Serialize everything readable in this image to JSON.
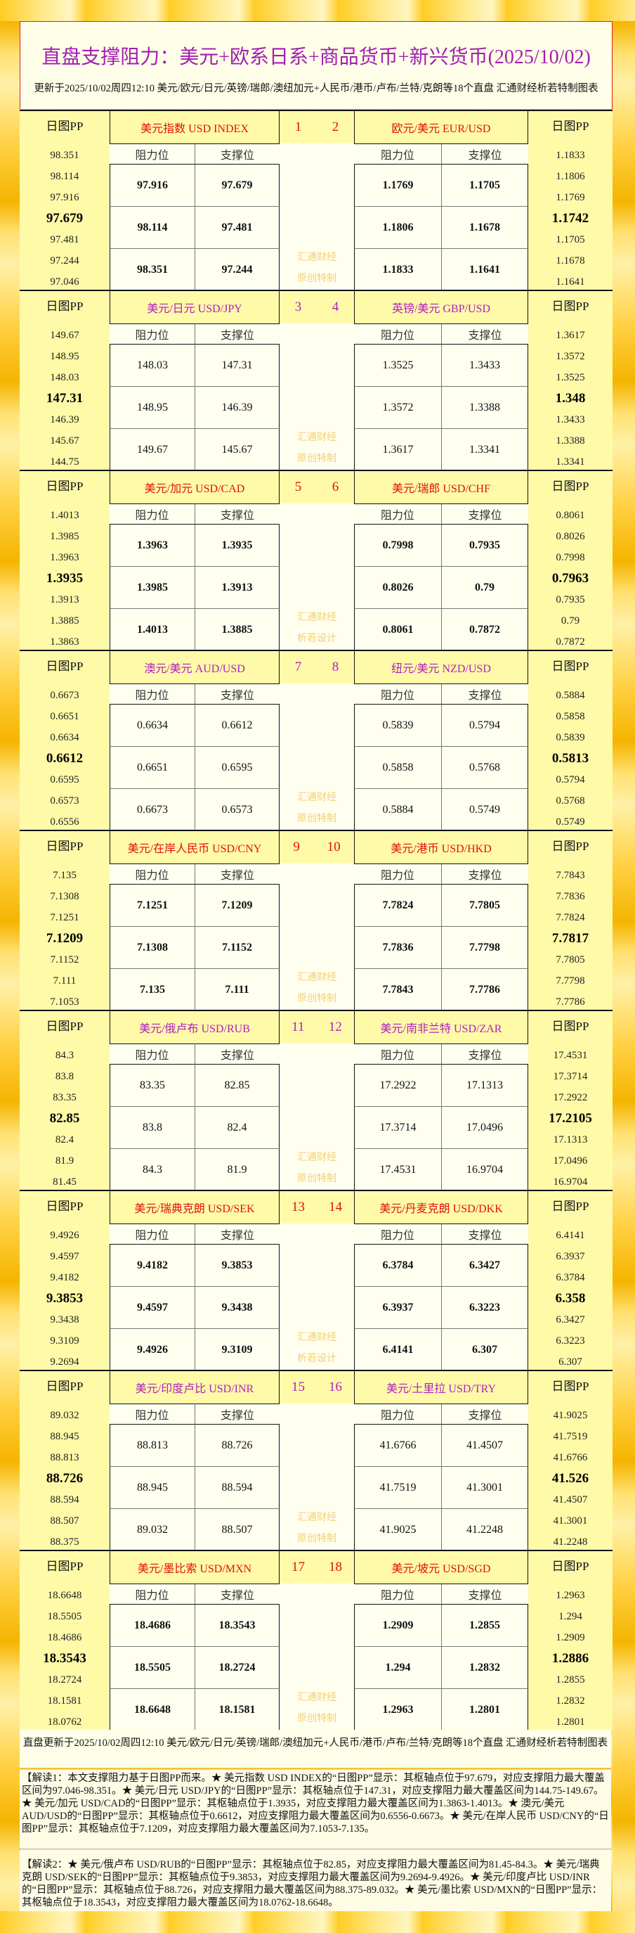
{
  "header": {
    "title": "直盘支撑阻力：美元+欧系日系+商品货币+新兴货币(2025/10/02)",
    "subtitle": "更新于2025/10/02周四12:10 美元/欧元/日元/英镑/瑞郎/澳纽加元+人民币/港币/卢布/兰特/克朗等18个直盘 汇通财经析若特制图表"
  },
  "labels": {
    "pp": "日图PP",
    "resistance": "阻力位",
    "support": "支撑位",
    "wm1": "汇通财经"
  },
  "colors": {
    "red": "#e01010",
    "purple": "#b020c0"
  },
  "blocks": [
    {
      "nums": [
        "1",
        "2"
      ],
      "color": "red",
      "bold": true,
      "wm2": "原创特制",
      "left": {
        "name": "美元指数 USD INDEX",
        "pp": [
          "98.351",
          "98.114",
          "97.916",
          "97.679",
          "97.481",
          "97.244",
          "97.046"
        ],
        "rows": [
          [
            "97.916",
            "97.679"
          ],
          [
            "98.114",
            "97.481"
          ],
          [
            "98.351",
            "97.244"
          ]
        ]
      },
      "right": {
        "name": "欧元/美元 EUR/USD",
        "pp": [
          "1.1833",
          "1.1806",
          "1.1769",
          "1.1742",
          "1.1705",
          "1.1678",
          "1.1641"
        ],
        "rows": [
          [
            "1.1769",
            "1.1705"
          ],
          [
            "1.1806",
            "1.1678"
          ],
          [
            "1.1833",
            "1.1641"
          ]
        ]
      }
    },
    {
      "nums": [
        "3",
        "4"
      ],
      "color": "purple",
      "bold": false,
      "wm2": "原创特制",
      "left": {
        "name": "美元/日元 USD/JPY",
        "pp": [
          "149.67",
          "148.95",
          "148.03",
          "147.31",
          "146.39",
          "145.67",
          "144.75"
        ],
        "rows": [
          [
            "148.03",
            "147.31"
          ],
          [
            "148.95",
            "146.39"
          ],
          [
            "149.67",
            "145.67"
          ]
        ]
      },
      "right": {
        "name": "英镑/美元 GBP/USD",
        "pp": [
          "1.3617",
          "1.3572",
          "1.3525",
          "1.348",
          "1.3433",
          "1.3388",
          "1.3341"
        ],
        "rows": [
          [
            "1.3525",
            "1.3433"
          ],
          [
            "1.3572",
            "1.3388"
          ],
          [
            "1.3617",
            "1.3341"
          ]
        ]
      }
    },
    {
      "nums": [
        "5",
        "6"
      ],
      "color": "red",
      "bold": true,
      "wm2": "析若设计",
      "left": {
        "name": "美元/加元 USD/CAD",
        "pp": [
          "1.4013",
          "1.3985",
          "1.3963",
          "1.3935",
          "1.3913",
          "1.3885",
          "1.3863"
        ],
        "rows": [
          [
            "1.3963",
            "1.3935"
          ],
          [
            "1.3985",
            "1.3913"
          ],
          [
            "1.4013",
            "1.3885"
          ]
        ]
      },
      "right": {
        "name": "美元/瑞郎 USD/CHF",
        "pp": [
          "0.8061",
          "0.8026",
          "0.7998",
          "0.7963",
          "0.7935",
          "0.79",
          "0.7872"
        ],
        "rows": [
          [
            "0.7998",
            "0.7935"
          ],
          [
            "0.8026",
            "0.79"
          ],
          [
            "0.8061",
            "0.7872"
          ]
        ]
      }
    },
    {
      "nums": [
        "7",
        "8"
      ],
      "color": "purple",
      "bold": false,
      "wm2": "原创特制",
      "left": {
        "name": "澳元/美元 AUD/USD",
        "pp": [
          "0.6673",
          "0.6651",
          "0.6634",
          "0.6612",
          "0.6595",
          "0.6573",
          "0.6556"
        ],
        "rows": [
          [
            "0.6634",
            "0.6612"
          ],
          [
            "0.6651",
            "0.6595"
          ],
          [
            "0.6673",
            "0.6573"
          ]
        ]
      },
      "right": {
        "name": "纽元/美元 NZD/USD",
        "pp": [
          "0.5884",
          "0.5858",
          "0.5839",
          "0.5813",
          "0.5794",
          "0.5768",
          "0.5749"
        ],
        "rows": [
          [
            "0.5839",
            "0.5794"
          ],
          [
            "0.5858",
            "0.5768"
          ],
          [
            "0.5884",
            "0.5749"
          ]
        ]
      }
    },
    {
      "nums": [
        "9",
        "10"
      ],
      "color": "red",
      "bold": true,
      "wm2": "原创特制",
      "left": {
        "name": "美元/在岸人民币 USD/CNY",
        "pp": [
          "7.135",
          "7.1308",
          "7.1251",
          "7.1209",
          "7.1152",
          "7.111",
          "7.1053"
        ],
        "rows": [
          [
            "7.1251",
            "7.1209"
          ],
          [
            "7.1308",
            "7.1152"
          ],
          [
            "7.135",
            "7.111"
          ]
        ]
      },
      "right": {
        "name": "美元/港币 USD/HKD",
        "pp": [
          "7.7843",
          "7.7836",
          "7.7824",
          "7.7817",
          "7.7805",
          "7.7798",
          "7.7786"
        ],
        "rows": [
          [
            "7.7824",
            "7.7805"
          ],
          [
            "7.7836",
            "7.7798"
          ],
          [
            "7.7843",
            "7.7786"
          ]
        ]
      }
    },
    {
      "nums": [
        "11",
        "12"
      ],
      "color": "purple",
      "bold": false,
      "wm2": "原创特制",
      "left": {
        "name": "美元/俄卢布 USD/RUB",
        "pp": [
          "84.3",
          "83.8",
          "83.35",
          "82.85",
          "82.4",
          "81.9",
          "81.45"
        ],
        "rows": [
          [
            "83.35",
            "82.85"
          ],
          [
            "83.8",
            "82.4"
          ],
          [
            "84.3",
            "81.9"
          ]
        ]
      },
      "right": {
        "name": "美元/南非兰特 USD/ZAR",
        "pp": [
          "17.4531",
          "17.3714",
          "17.2922",
          "17.2105",
          "17.1313",
          "17.0496",
          "16.9704"
        ],
        "rows": [
          [
            "17.2922",
            "17.1313"
          ],
          [
            "17.3714",
            "17.0496"
          ],
          [
            "17.4531",
            "16.9704"
          ]
        ]
      }
    },
    {
      "nums": [
        "13",
        "14"
      ],
      "color": "red",
      "bold": true,
      "wm2": "析若设计",
      "left": {
        "name": "美元/瑞典克朗 USD/SEK",
        "pp": [
          "9.4926",
          "9.4597",
          "9.4182",
          "9.3853",
          "9.3438",
          "9.3109",
          "9.2694"
        ],
        "rows": [
          [
            "9.4182",
            "9.3853"
          ],
          [
            "9.4597",
            "9.3438"
          ],
          [
            "9.4926",
            "9.3109"
          ]
        ]
      },
      "right": {
        "name": "美元/丹麦克朗 USD/DKK",
        "pp": [
          "6.4141",
          "6.3937",
          "6.3784",
          "6.358",
          "6.3427",
          "6.3223",
          "6.307"
        ],
        "rows": [
          [
            "6.3784",
            "6.3427"
          ],
          [
            "6.3937",
            "6.3223"
          ],
          [
            "6.4141",
            "6.307"
          ]
        ]
      }
    },
    {
      "nums": [
        "15",
        "16"
      ],
      "color": "purple",
      "bold": false,
      "wm2": "原创特制",
      "left": {
        "name": "美元/印度卢比 USD/INR",
        "pp": [
          "89.032",
          "88.945",
          "88.813",
          "88.726",
          "88.594",
          "88.507",
          "88.375"
        ],
        "rows": [
          [
            "88.813",
            "88.726"
          ],
          [
            "88.945",
            "88.594"
          ],
          [
            "89.032",
            "88.507"
          ]
        ]
      },
      "right": {
        "name": "美元/土里拉 USD/TRY",
        "pp": [
          "41.9025",
          "41.7519",
          "41.6766",
          "41.526",
          "41.4507",
          "41.3001",
          "41.2248"
        ],
        "rows": [
          [
            "41.6766",
            "41.4507"
          ],
          [
            "41.7519",
            "41.3001"
          ],
          [
            "41.9025",
            "41.2248"
          ]
        ]
      }
    },
    {
      "nums": [
        "17",
        "18"
      ],
      "color": "red",
      "bold": true,
      "wm2": "原创特制",
      "left": {
        "name": "美元/墨比索 USD/MXN",
        "pp": [
          "18.6648",
          "18.5505",
          "18.4686",
          "18.3543",
          "18.2724",
          "18.1581",
          "18.0762"
        ],
        "rows": [
          [
            "18.4686",
            "18.3543"
          ],
          [
            "18.5505",
            "18.2724"
          ],
          [
            "18.6648",
            "18.1581"
          ]
        ]
      },
      "right": {
        "name": "美元/坡元 USD/SGD",
        "pp": [
          "1.2963",
          "1.294",
          "1.2909",
          "1.2886",
          "1.2855",
          "1.2832",
          "1.2801"
        ],
        "rows": [
          [
            "1.2909",
            "1.2855"
          ],
          [
            "1.294",
            "1.2832"
          ],
          [
            "1.2963",
            "1.2801"
          ]
        ]
      }
    }
  ],
  "footer": {
    "update": "直盘更新于2025/10/02周四12:10 美元/欧元/日元/英镑/瑞郎/澳纽加元+人民币/港币/卢布/兰特/克朗等18个直盘 汇通财经析若特制图表",
    "note1": "【解读1：本文支撑阻力基于日图PP而来。★ 美元指数 USD INDEX的“日图PP”显示：其枢轴点位于97.679，对应支撑阻力最大覆盖区间为97.046-98.351。★ 美元/日元 USD/JPY的“日图PP”显示：其枢轴点位于147.31，对应支撑阻力最大覆盖区间为144.75-149.67。★ 美元/加元 USD/CAD的“日图PP”显示：其枢轴点位于1.3935，对应支撑阻力最大覆盖区间为1.3863-1.4013。★ 澳元/美元 AUD/USD的“日图PP”显示：其枢轴点位于0.6612，对应支撑阻力最大覆盖区间为0.6556-0.6673。★ 美元/在岸人民币 USD/CNY的“日图PP”显示：其枢轴点位于7.1209，对应支撑阻力最大覆盖区间为7.1053-7.135。",
    "note2": "【解读2：★ 美元/俄卢布 USD/RUB的“日图PP”显示：其枢轴点位于82.85，对应支撑阻力最大覆盖区间为81.45-84.3。★ 美元/瑞典克朗 USD/SEK的“日图PP”显示：其枢轴点位于9.3853，对应支撑阻力最大覆盖区间为9.2694-9.4926。★ 美元/印度卢比 USD/INR的“日图PP”显示：其枢轴点位于88.726，对应支撑阻力最大覆盖区间为88.375-89.032。★ 美元/墨比索 USD/MXN的“日图PP”显示：其枢轴点位于18.3543，对应支撑阻力最大覆盖区间为18.0762-18.6648。"
  }
}
